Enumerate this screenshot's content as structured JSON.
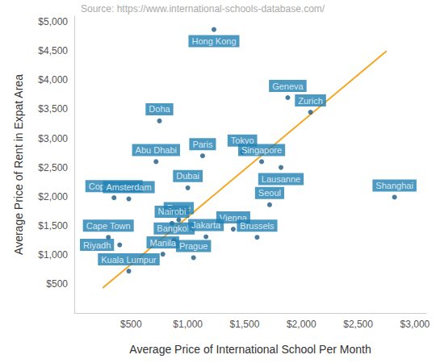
{
  "chart_data": {
    "type": "scatter",
    "source": "Source: https://www.international-schools-database.com/",
    "xlabel": "Average Price of International School Per Month",
    "ylabel": "Average Price of Rent in Expat Area",
    "point_labels": [
      "Hong Kong",
      "Geneva",
      "Zurich",
      "Doha",
      "Tokyo",
      "Paris",
      "Singapore",
      "Abu Dhabi",
      "Lausanne",
      "Dubai",
      "Copenhagen",
      "Amsterdam",
      "Shanghai",
      "Seoul",
      "Rome",
      "Nairobi",
      "Vienna",
      "Cape Town",
      "Riyadh",
      "Bangkok",
      "Jakarta",
      "Brussels",
      "Manila",
      "Prague",
      "Kuala Lumpur"
    ],
    "x": [
      1230,
      1880,
      2080,
      750,
      1480,
      1130,
      1650,
      720,
      1820,
      1000,
      350,
      480,
      2820,
      1720,
      920,
      860,
      1400,
      300,
      400,
      880,
      1160,
      1610,
      780,
      1050,
      480
    ],
    "values": [
      4870,
      3700,
      3450,
      3300,
      2760,
      2700,
      2600,
      2600,
      2500,
      2150,
      1980,
      1960,
      1990,
      1860,
      1600,
      1540,
      1440,
      1300,
      1170,
      1250,
      1310,
      1300,
      1010,
      950,
      720
    ],
    "color": "#1a5a85",
    "trend_line": {
      "x": [
        250,
        2750
      ],
      "values": [
        430,
        4500
      ],
      "color": "#f5a623"
    },
    "xlim": [
      0,
      3100
    ],
    "ylim": [
      0,
      5100
    ],
    "xticks": [
      {
        "value": 500,
        "label": "$500"
      },
      {
        "value": 1000,
        "label": "$1,000"
      },
      {
        "value": 1500,
        "label": "$1,500"
      },
      {
        "value": 2000,
        "label": "$2,000"
      },
      {
        "value": 2500,
        "label": "$2,500"
      },
      {
        "value": 3000,
        "label": "$3,000"
      }
    ],
    "yticks": [
      {
        "value": 500,
        "label": "$500"
      },
      {
        "value": 1000,
        "label": "$1,000"
      },
      {
        "value": 1500,
        "label": "$1,500"
      },
      {
        "value": 2000,
        "label": "$2,000"
      },
      {
        "value": 2500,
        "label": "$2,500"
      },
      {
        "value": 3000,
        "label": "$3,000"
      },
      {
        "value": 3500,
        "label": "$3,500"
      },
      {
        "value": 4000,
        "label": "$4,000"
      },
      {
        "value": 4500,
        "label": "$4,500"
      },
      {
        "value": 5000,
        "label": "$5,000"
      }
    ],
    "grid": false
  }
}
